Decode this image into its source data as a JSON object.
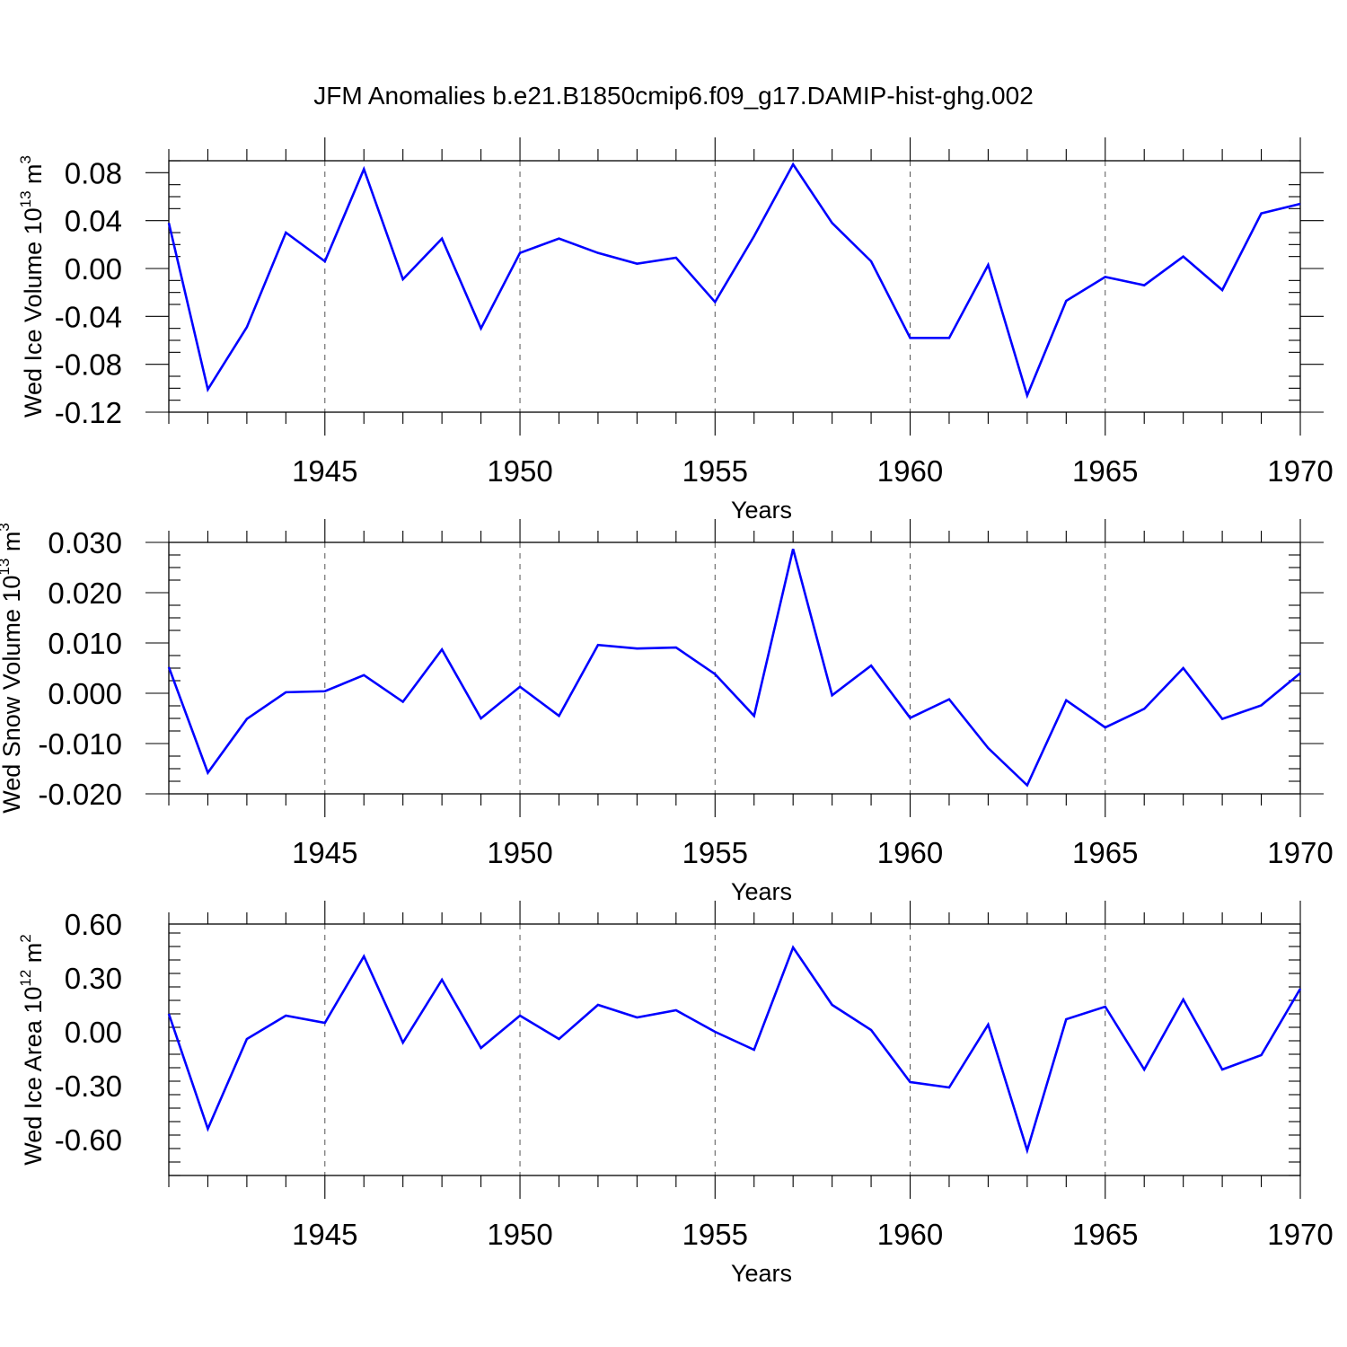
{
  "colors": {
    "series": "#0000ff",
    "axis": "#000000",
    "grid": "#555555"
  },
  "chart_data": {
    "title": "JFM Anomalies b.e21.B1850cmip6.f09_g17.DAMIP-hist-ghg.002",
    "panels": [
      {
        "type": "line",
        "ylabel_main": "Wed Ice Volume 10",
        "ylabel_exp": "13",
        "ylabel_unit": "m",
        "ylabel_unit_exp": "3",
        "xlabel": "Years",
        "xlim": [
          1941,
          1970
        ],
        "ylim": [
          -0.12,
          0.09
        ],
        "yticks": [
          -0.12,
          -0.08,
          -0.04,
          0.0,
          0.04,
          0.08
        ],
        "ytick_labels": [
          "-0.12",
          "-0.08",
          "-0.04",
          "0.00",
          "0.04",
          "0.08"
        ],
        "xticks": [
          1945,
          1950,
          1955,
          1960,
          1965,
          1970
        ],
        "xtick_labels": [
          "1945",
          "1950",
          "1955",
          "1960",
          "1965",
          "1970"
        ],
        "x": [
          1941,
          1942,
          1943,
          1944,
          1945,
          1946,
          1947,
          1948,
          1949,
          1950,
          1951,
          1952,
          1953,
          1954,
          1955,
          1956,
          1957,
          1958,
          1959,
          1960,
          1961,
          1962,
          1963,
          1964,
          1965,
          1966,
          1967,
          1968,
          1969,
          1970
        ],
        "values": [
          0.038,
          -0.101,
          -0.049,
          0.03,
          0.006,
          0.083,
          -0.009,
          0.025,
          -0.05,
          0.013,
          0.025,
          0.013,
          0.004,
          0.009,
          -0.028,
          0.027,
          0.087,
          0.038,
          0.006,
          -0.058,
          -0.058,
          0.003,
          -0.106,
          -0.027,
          -0.007,
          -0.014,
          0.01,
          -0.018,
          0.046,
          0.054
        ]
      },
      {
        "type": "line",
        "ylabel_main": "Wed Snow Volume 10",
        "ylabel_exp": "13",
        "ylabel_unit": "m",
        "ylabel_unit_exp": "3",
        "xlabel": "Years",
        "xlim": [
          1941,
          1970
        ],
        "ylim": [
          -0.02,
          0.03
        ],
        "yticks": [
          -0.02,
          -0.01,
          0.0,
          0.01,
          0.02,
          0.03
        ],
        "ytick_labels": [
          "-0.020",
          "-0.010",
          "0.000",
          "0.010",
          "0.020",
          "0.030"
        ],
        "xticks": [
          1945,
          1950,
          1955,
          1960,
          1965,
          1970
        ],
        "xtick_labels": [
          "1945",
          "1950",
          "1955",
          "1960",
          "1965",
          "1970"
        ],
        "x": [
          1941,
          1942,
          1943,
          1944,
          1945,
          1946,
          1947,
          1948,
          1949,
          1950,
          1951,
          1952,
          1953,
          1954,
          1955,
          1956,
          1957,
          1958,
          1959,
          1960,
          1961,
          1962,
          1963,
          1964,
          1965,
          1966,
          1967,
          1968,
          1969,
          1970
        ],
        "values": [
          0.0052,
          -0.0158,
          -0.0051,
          0.0002,
          0.0004,
          0.0036,
          -0.0017,
          0.0087,
          -0.005,
          0.0013,
          -0.0045,
          0.0096,
          0.0089,
          0.0091,
          0.0038,
          -0.0045,
          0.0287,
          -0.0004,
          0.0055,
          -0.0049,
          -0.0012,
          -0.0109,
          -0.0183,
          -0.0014,
          -0.0068,
          -0.0031,
          0.005,
          -0.0051,
          -0.0024,
          0.004
        ]
      },
      {
        "type": "line",
        "ylabel_main": "Wed Ice Area 10",
        "ylabel_exp": "12",
        "ylabel_unit": "m",
        "ylabel_unit_exp": "2",
        "xlabel": "Years",
        "xlim": [
          1941,
          1970
        ],
        "ylim": [
          -0.8,
          0.6
        ],
        "yticks": [
          -0.6,
          -0.3,
          0.0,
          0.3,
          0.6
        ],
        "ytick_labels": [
          "-0.60",
          "-0.30",
          "0.00",
          "0.30",
          "0.60"
        ],
        "xticks": [
          1945,
          1950,
          1955,
          1960,
          1965,
          1970
        ],
        "xtick_labels": [
          "1945",
          "1950",
          "1955",
          "1960",
          "1965",
          "1970"
        ],
        "x": [
          1941,
          1942,
          1943,
          1944,
          1945,
          1946,
          1947,
          1948,
          1949,
          1950,
          1951,
          1952,
          1953,
          1954,
          1955,
          1956,
          1957,
          1958,
          1959,
          1960,
          1961,
          1962,
          1963,
          1964,
          1965,
          1966,
          1967,
          1968,
          1969,
          1970
        ],
        "values": [
          0.1,
          -0.54,
          -0.04,
          0.09,
          0.05,
          0.42,
          -0.06,
          0.29,
          -0.09,
          0.09,
          -0.04,
          0.15,
          0.08,
          0.12,
          0.0,
          -0.1,
          0.47,
          0.15,
          0.01,
          -0.28,
          -0.31,
          0.04,
          -0.66,
          0.07,
          0.14,
          -0.21,
          0.18,
          -0.21,
          -0.13,
          0.24
        ]
      }
    ]
  }
}
